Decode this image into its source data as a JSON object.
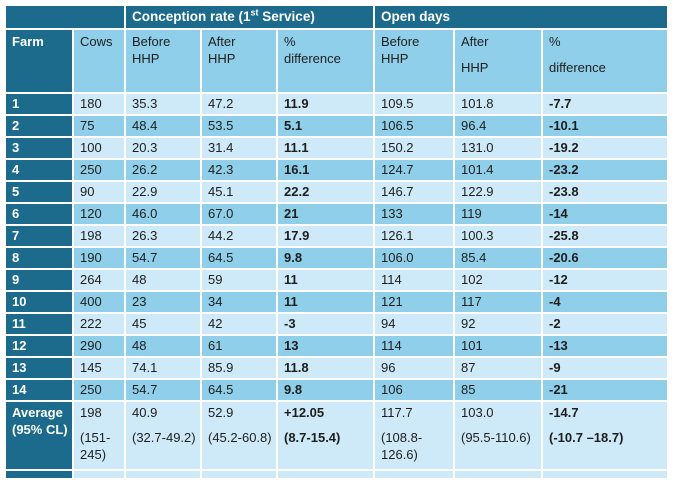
{
  "colors": {
    "dark_teal": "#1C6A8C",
    "row_medium": "#90CFEA",
    "row_light": "#CEEAF8",
    "text_dark": "#1E1E1E",
    "text_light": "#FFFFFF",
    "background": "#FFFFFF"
  },
  "band": {
    "conception": {
      "prefix": "Conception rate (1",
      "sup": "st",
      "suffix": " Service)"
    },
    "open_days": "Open days"
  },
  "headers": [
    {
      "line1": "Farm",
      "line2": ""
    },
    {
      "line1": "Cows",
      "line2": ""
    },
    {
      "line1": "Before",
      "line2": "HHP"
    },
    {
      "line1": "After",
      "line2": "HHP"
    },
    {
      "line1": "%",
      "line2": "difference"
    },
    {
      "line1": "Before",
      "line2": "HHP"
    },
    {
      "line1": "After",
      "line2": "HHP"
    },
    {
      "line1": "%",
      "line2": "difference"
    }
  ],
  "chart_data": {
    "type": "table",
    "column_groups": [
      {
        "label": "Conception rate (1st Service)",
        "columns": [
          "Before HHP",
          "After HHP",
          "% difference"
        ]
      },
      {
        "label": "Open days",
        "columns": [
          "Before HHP",
          "After HHP",
          "% difference"
        ]
      }
    ],
    "columns": [
      "Farm",
      "Cows",
      "Before HHP",
      "After HHP",
      "% difference",
      "Before HHP",
      "After HHP",
      "% difference"
    ],
    "rows": [
      {
        "farm": "1",
        "cows": "180",
        "cr_before": "35.3",
        "cr_after": "47.2",
        "cr_diff": "11.9",
        "od_before": "109.5",
        "od_after": "101.8",
        "od_diff": "-7.7"
      },
      {
        "farm": "2",
        "cows": "75",
        "cr_before": "48.4",
        "cr_after": "53.5",
        "cr_diff": "5.1",
        "od_before": "106.5",
        "od_after": "96.4",
        "od_diff": "-10.1"
      },
      {
        "farm": "3",
        "cows": "100",
        "cr_before": "20.3",
        "cr_after": "31.4",
        "cr_diff": "11.1",
        "od_before": "150.2",
        "od_after": "131.0",
        "od_diff": "-19.2"
      },
      {
        "farm": "4",
        "cows": "250",
        "cr_before": "26.2",
        "cr_after": "42.3",
        "cr_diff": "16.1",
        "od_before": "124.7",
        "od_after": "101.4",
        "od_diff": "-23.2"
      },
      {
        "farm": "5",
        "cows": "90",
        "cr_before": "22.9",
        "cr_after": "45.1",
        "cr_diff": "22.2",
        "od_before": "146.7",
        "od_after": "122.9",
        "od_diff": "-23.8"
      },
      {
        "farm": "6",
        "cows": "120",
        "cr_before": "46.0",
        "cr_after": "67.0",
        "cr_diff": "21",
        "od_before": "133",
        "od_after": "119",
        "od_diff": "-14"
      },
      {
        "farm": "7",
        "cows": "198",
        "cr_before": "26.3",
        "cr_after": "44.2",
        "cr_diff": "17.9",
        "od_before": "126.1",
        "od_after": "100.3",
        "od_diff": "-25.8"
      },
      {
        "farm": "8",
        "cows": "190",
        "cr_before": "54.7",
        "cr_after": "64.5",
        "cr_diff": "9.8",
        "od_before": "106.0",
        "od_after": "85.4",
        "od_diff": "-20.6"
      },
      {
        "farm": "9",
        "cows": "264",
        "cr_before": "48",
        "cr_after": "59",
        "cr_diff": "11",
        "od_before": "114",
        "od_after": "102",
        "od_diff": "-12"
      },
      {
        "farm": "10",
        "cows": "400",
        "cr_before": "23",
        "cr_after": "34",
        "cr_diff": "11",
        "od_before": "121",
        "od_after": "117",
        "od_diff": "-4"
      },
      {
        "farm": "11",
        "cows": "222",
        "cr_before": "45",
        "cr_after": "42",
        "cr_diff": "-3",
        "od_before": "94",
        "od_after": "92",
        "od_diff": "-2"
      },
      {
        "farm": "12",
        "cows": "290",
        "cr_before": "48",
        "cr_after": "61",
        "cr_diff": "13",
        "od_before": "114",
        "od_after": "101",
        "od_diff": "-13"
      },
      {
        "farm": "13",
        "cows": "145",
        "cr_before": "74.1",
        "cr_after": "85.9",
        "cr_diff": "11.8",
        "od_before": "96",
        "od_after": "87",
        "od_diff": "-9"
      },
      {
        "farm": "14",
        "cows": "250",
        "cr_before": "54.7",
        "cr_after": "64.5",
        "cr_diff": "9.8",
        "od_before": "106",
        "od_after": "85",
        "od_diff": "-21"
      }
    ],
    "average_row": {
      "label_line1": "Average",
      "label_line2": "(95% CL)",
      "cows": {
        "value": "198",
        "ci": "(151-245)"
      },
      "cr_before": {
        "value": "40.9",
        "ci": "(32.7-49.2)"
      },
      "cr_after": {
        "value": "52.9",
        "ci": "(45.2-60.8)"
      },
      "cr_diff": {
        "value": "+12.05",
        "ci": "(8.7-15.4)"
      },
      "od_before": {
        "value": "117.7",
        "ci": "(108.8-126.6)"
      },
      "od_after": {
        "value": "103.0",
        "ci": "(95.5-110.6)"
      },
      "od_diff": {
        "value": "-14.7",
        "ci": "(-10.7 –18.7)"
      }
    }
  }
}
